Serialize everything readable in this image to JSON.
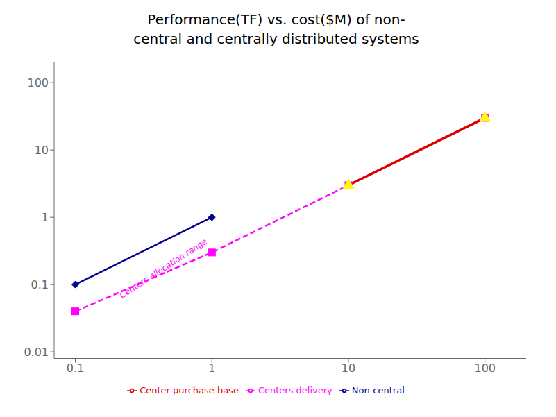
{
  "chart_data": {
    "type": "line",
    "title": "Performance(TF) vs. cost($M) of non-",
    "subtitle": "central and centrally distributed systems",
    "log": true,
    "grid": false,
    "legend": "bottom",
    "xlim": [
      0.07,
      200
    ],
    "ylim": [
      0.008,
      200
    ],
    "xticks": [
      0.1,
      1,
      10,
      100
    ],
    "yticks": [
      0.01,
      0.1,
      1,
      10,
      100
    ],
    "series": [
      {
        "name": "Non-central",
        "color": "#00008B",
        "marker": "diamond",
        "line_style": "solid",
        "x": [
          0.1,
          1.0
        ],
        "values": [
          0.1,
          1.0
        ]
      },
      {
        "name": "Centers delivery",
        "color": "#FF00FF",
        "marker": "square",
        "line_style": "dashed",
        "x": [
          0.1,
          1.0,
          10.0,
          100.0
        ],
        "values": [
          0.04,
          0.3,
          3.0,
          30.0
        ]
      },
      {
        "name": "Center purchase base",
        "color": "#DD0000",
        "colors": [
          "#FFFF00",
          "#FFFF00"
        ],
        "marker": "triangle",
        "line_style": "solid",
        "x": [
          10.0,
          100.0
        ],
        "values": [
          3.0,
          30.0
        ]
      }
    ],
    "annotations": [
      {
        "text": "Centers allocation range",
        "x": 0.22,
        "y": 0.062,
        "color": "#FF00FF"
      }
    ]
  }
}
